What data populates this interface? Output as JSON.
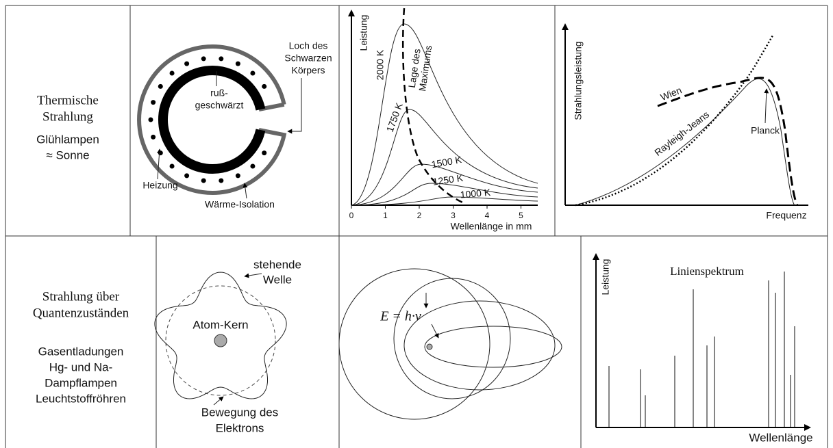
{
  "thermal": {
    "heading": [
      "Thermische",
      "Strahlung"
    ],
    "examples": [
      "Glühlampen",
      "≈ Sonne"
    ]
  },
  "cavity": {
    "hole": [
      "Loch des",
      "Schwarzen",
      "Körpers"
    ],
    "sooted": [
      "ruß-",
      "geschwärzt"
    ],
    "heater": "Heizung",
    "insulation": "Wärme-Isolation"
  },
  "planck_chart": {
    "y_label": "Leistung",
    "x_label": "Wellenlänge in mm",
    "xticks": [
      0,
      1,
      2,
      3,
      4,
      5
    ],
    "curves": [
      "2000 K",
      "1750 K",
      "1500 K",
      "1250 K",
      "1000 K"
    ],
    "maximum": [
      "Lage des",
      "Maximums"
    ]
  },
  "laws_chart": {
    "y_label": "Strahlungsleistung",
    "x_label": "Frequenz",
    "curves": [
      "Wien",
      "Rayleigh-Jeans",
      "Planck"
    ]
  },
  "quantum": {
    "heading": [
      "Strahlung über",
      "Quantenzuständen"
    ],
    "examples": [
      "Gasentladungen",
      "Hg- und Na-",
      "Dampflampen",
      "Leuchtstoffröhren"
    ]
  },
  "atom": {
    "wave": [
      "stehende",
      "Welle"
    ],
    "nucleus": "Atom-Kern",
    "electron": [
      "Bewegung des",
      "Elektrons"
    ]
  },
  "orbits": {
    "formula": "E = h·ν"
  },
  "spectrum": {
    "y_label": "Leistung",
    "title": "Linienspektrum",
    "x_label": "Wellenlänge"
  }
}
